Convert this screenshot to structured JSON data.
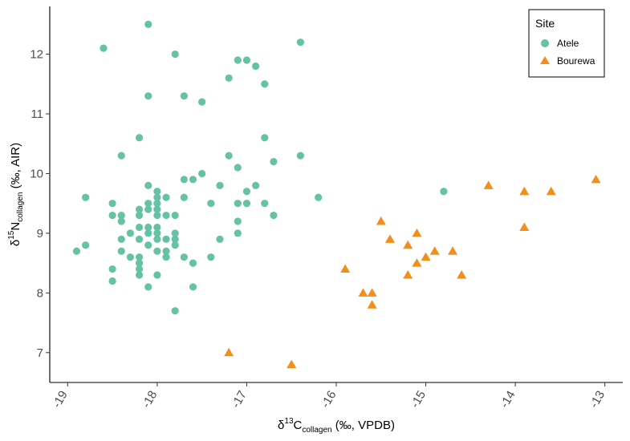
{
  "chart_data": {
    "type": "scatter",
    "title": "",
    "x_axis": {
      "label": {
        "prefix": "δ",
        "superscript": "13",
        "base": "C",
        "subscript": "collagen",
        "suffix": " (‰, VPDB)"
      },
      "range": [
        -19.2,
        -12.8
      ],
      "ticks": [
        -19,
        -18,
        -17,
        -16,
        -15,
        -14,
        -13
      ],
      "tick_labels": [
        "-19",
        "-18",
        "-17",
        "-16",
        "-15",
        "-14",
        "-13"
      ]
    },
    "y_axis": {
      "label": {
        "prefix": "δ",
        "superscript": "15",
        "base": "N",
        "subscript": "collagen",
        "suffix": " (‰, AIR)"
      },
      "range": [
        6.5,
        12.8
      ],
      "ticks": [
        7,
        8,
        9,
        10,
        11,
        12
      ],
      "tick_labels": [
        "7",
        "8",
        "9",
        "10",
        "11",
        "12"
      ]
    },
    "grid": false,
    "legend": {
      "title": "Site",
      "placement": "top-right"
    },
    "series": [
      {
        "name": "Atele",
        "marker": "circle",
        "color": "#66c2a5",
        "points": [
          [
            -18.1,
            12.5
          ],
          [
            -18.6,
            12.1
          ],
          [
            -17.8,
            12.0
          ],
          [
            -16.4,
            12.2
          ],
          [
            -17.1,
            11.9
          ],
          [
            -17.0,
            11.9
          ],
          [
            -16.9,
            11.8
          ],
          [
            -17.2,
            11.6
          ],
          [
            -16.8,
            11.5
          ],
          [
            -18.1,
            11.3
          ],
          [
            -17.7,
            11.3
          ],
          [
            -17.5,
            11.2
          ],
          [
            -18.2,
            10.6
          ],
          [
            -16.8,
            10.6
          ],
          [
            -18.4,
            10.3
          ],
          [
            -17.2,
            10.3
          ],
          [
            -16.4,
            10.3
          ],
          [
            -16.7,
            10.2
          ],
          [
            -17.1,
            10.1
          ],
          [
            -17.5,
            10.0
          ],
          [
            -17.7,
            9.9
          ],
          [
            -17.6,
            9.9
          ],
          [
            -18.1,
            9.8
          ],
          [
            -17.3,
            9.8
          ],
          [
            -16.9,
            9.8
          ],
          [
            -18.0,
            9.7
          ],
          [
            -17.0,
            9.7
          ],
          [
            -14.8,
            9.7
          ],
          [
            -18.8,
            9.6
          ],
          [
            -18.0,
            9.6
          ],
          [
            -17.9,
            9.6
          ],
          [
            -17.7,
            9.6
          ],
          [
            -16.2,
            9.6
          ],
          [
            -18.5,
            9.5
          ],
          [
            -18.1,
            9.5
          ],
          [
            -18.0,
            9.5
          ],
          [
            -17.4,
            9.5
          ],
          [
            -17.1,
            9.5
          ],
          [
            -17.0,
            9.5
          ],
          [
            -16.8,
            9.5
          ],
          [
            -18.2,
            9.4
          ],
          [
            -18.1,
            9.4
          ],
          [
            -18.0,
            9.4
          ],
          [
            -18.5,
            9.3
          ],
          [
            -18.4,
            9.3
          ],
          [
            -18.2,
            9.3
          ],
          [
            -18.0,
            9.3
          ],
          [
            -17.9,
            9.3
          ],
          [
            -17.8,
            9.3
          ],
          [
            -16.7,
            9.3
          ],
          [
            -18.4,
            9.2
          ],
          [
            -17.1,
            9.2
          ],
          [
            -18.2,
            9.1
          ],
          [
            -18.1,
            9.1
          ],
          [
            -18.0,
            9.1
          ],
          [
            -18.3,
            9.0
          ],
          [
            -18.1,
            9.0
          ],
          [
            -18.0,
            9.0
          ],
          [
            -17.8,
            9.0
          ],
          [
            -17.1,
            9.0
          ],
          [
            -18.4,
            8.9
          ],
          [
            -18.2,
            8.9
          ],
          [
            -18.0,
            8.9
          ],
          [
            -17.9,
            8.9
          ],
          [
            -17.8,
            8.9
          ],
          [
            -17.3,
            8.9
          ],
          [
            -18.8,
            8.8
          ],
          [
            -18.1,
            8.8
          ],
          [
            -17.8,
            8.8
          ],
          [
            -18.9,
            8.7
          ],
          [
            -18.4,
            8.7
          ],
          [
            -18.0,
            8.7
          ],
          [
            -17.9,
            8.7
          ],
          [
            -18.3,
            8.6
          ],
          [
            -18.2,
            8.6
          ],
          [
            -17.9,
            8.6
          ],
          [
            -17.7,
            8.6
          ],
          [
            -17.4,
            8.6
          ],
          [
            -18.2,
            8.5
          ],
          [
            -17.6,
            8.5
          ],
          [
            -18.5,
            8.4
          ],
          [
            -18.2,
            8.4
          ],
          [
            -18.2,
            8.3
          ],
          [
            -18.0,
            8.3
          ],
          [
            -18.5,
            8.2
          ],
          [
            -18.1,
            8.1
          ],
          [
            -17.6,
            8.1
          ],
          [
            -17.8,
            7.7
          ]
        ]
      },
      {
        "name": "Bourewa",
        "marker": "triangle",
        "color": "#f28e1c",
        "points": [
          [
            -13.1,
            9.9
          ],
          [
            -14.3,
            9.8
          ],
          [
            -13.9,
            9.7
          ],
          [
            -13.6,
            9.7
          ],
          [
            -15.5,
            9.2
          ],
          [
            -13.9,
            9.1
          ],
          [
            -15.1,
            9.0
          ],
          [
            -15.4,
            8.9
          ],
          [
            -15.2,
            8.8
          ],
          [
            -14.9,
            8.7
          ],
          [
            -14.7,
            8.7
          ],
          [
            -15.0,
            8.6
          ],
          [
            -15.1,
            8.5
          ],
          [
            -15.9,
            8.4
          ],
          [
            -15.2,
            8.3
          ],
          [
            -14.6,
            8.3
          ],
          [
            -15.7,
            8.0
          ],
          [
            -15.6,
            8.0
          ],
          [
            -15.6,
            7.8
          ],
          [
            -17.2,
            7.0
          ],
          [
            -16.5,
            6.8
          ]
        ]
      }
    ]
  }
}
